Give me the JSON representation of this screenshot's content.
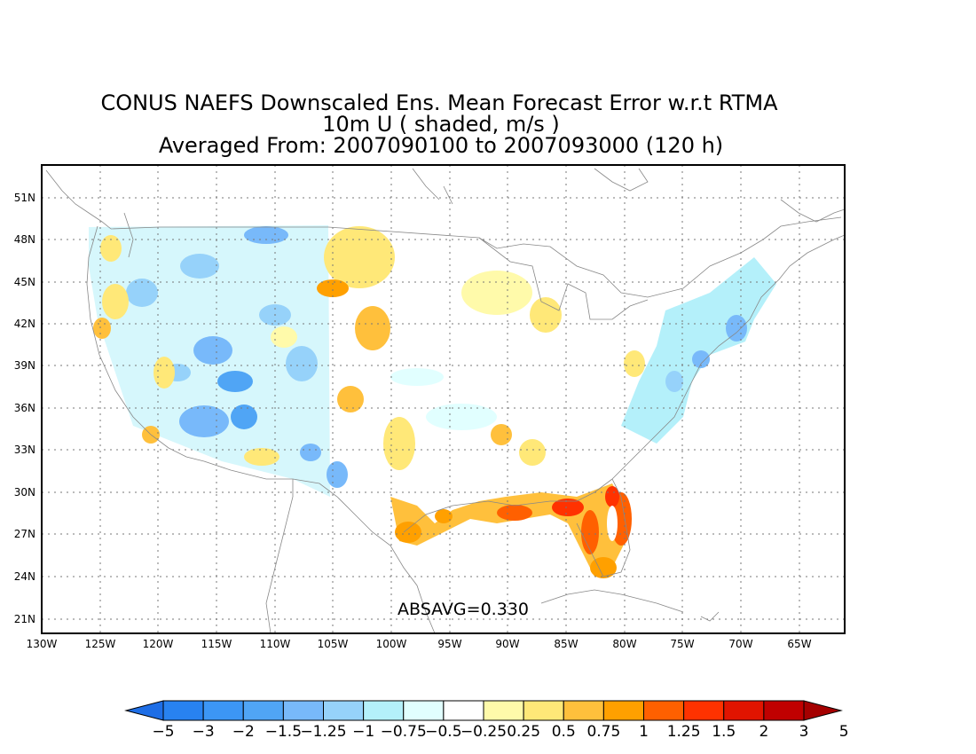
{
  "title": {
    "line1": "CONUS NAEFS Downscaled Ens. Mean Forecast Error w.r.t RTMA",
    "line2": "10m U ( shaded, m/s )",
    "line3": "Averaged From: 2007090100 to 2007093000 (120 h)"
  },
  "annotation": "ABSAVG=0.330",
  "map": {
    "lon_range": [
      -130,
      -61
    ],
    "lat_range": [
      20,
      53
    ],
    "lon_ticks": [
      "130W",
      "125W",
      "120W",
      "115W",
      "110W",
      "105W",
      "100W",
      "95W",
      "90W",
      "85W",
      "80W",
      "75W",
      "70W",
      "65W"
    ],
    "lat_ticks": [
      "21N",
      "24N",
      "27N",
      "30N",
      "33N",
      "36N",
      "39N",
      "42N",
      "45N",
      "48N",
      "51N"
    ]
  },
  "colorbar": {
    "labels": [
      "-5",
      "-3",
      "-2",
      "-1.5",
      "-1.25",
      "-1",
      "-0.75",
      "-0.5",
      "-0.25",
      "0.25",
      "0.5",
      "0.75",
      "1",
      "1.25",
      "1.5",
      "2",
      "3",
      "5"
    ],
    "colors": [
      "#1e6ee6",
      "#2882f0",
      "#3c96f5",
      "#50a5f5",
      "#78b9fa",
      "#96d2fa",
      "#b4f0fa",
      "#e1ffff",
      "#ffffff",
      "#fffaaa",
      "#ffe878",
      "#ffc03c",
      "#ffa000",
      "#ff6000",
      "#ff3200",
      "#e11400",
      "#c00000",
      "#a50000"
    ]
  }
}
